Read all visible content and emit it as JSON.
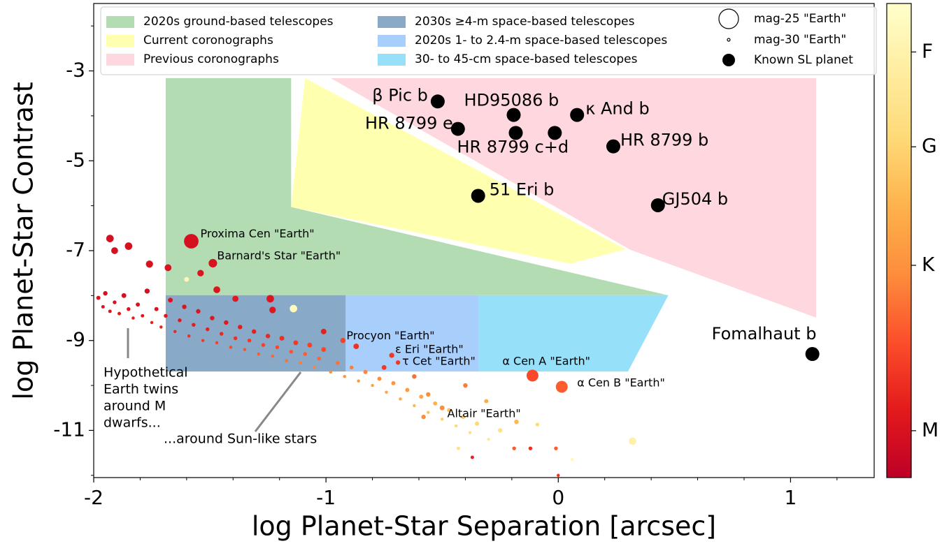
{
  "chart_data": {
    "type": "scatter",
    "xlabel": "log Planet-Star Separation [arcsec]",
    "ylabel": "log Planet-Star Contrast",
    "xlim": [
      -2,
      1.36
    ],
    "ylim": [
      -12.05,
      -1.5
    ],
    "xticks": [
      -2,
      -1,
      0,
      1
    ],
    "xminorticks": [
      -1.8,
      -1.6,
      -1.4,
      -1.2,
      -0.8,
      -0.6,
      -0.4,
      -0.2,
      0.2,
      0.4,
      0.6,
      0.8,
      1.2
    ],
    "yticks": [
      -11,
      -9,
      -7,
      -5,
      -3
    ],
    "yminorticks": [
      -12,
      -10,
      -8,
      -6,
      -4,
      -2
    ],
    "regions": [
      {
        "name": "2020s ground-based telescopes",
        "color": "#b3dcb3",
        "x": [
          -1.69,
          -1.15,
          -1.15,
          0.47,
          -1.69
        ],
        "y": [
          -3.16,
          -3.16,
          -6.03,
          -7.99,
          -7.99
        ]
      },
      {
        "name": "Current coronographs",
        "color": "#ffffb0",
        "x": [
          -1.09,
          0.29,
          0.05,
          -1.15
        ],
        "y": [
          -3.16,
          -6.97,
          -7.29,
          -6.03
        ]
      },
      {
        "name": "Previous coronographs",
        "color": "#ffd7de",
        "x": [
          -0.98,
          1.11,
          1.11,
          0.31
        ],
        "y": [
          -3.16,
          -3.16,
          -8.49,
          -6.98
        ]
      },
      {
        "name": "2030s ≥4-m space-based telescopes",
        "color": "#88a9c8",
        "x": [
          -1.69,
          -0.915,
          -0.915,
          -1.69
        ],
        "y": [
          -7.99,
          -7.99,
          -9.69,
          -9.69
        ]
      },
      {
        "name": "2020s 1- to 2.4-m space-based telescopes",
        "color": "#a8cffc",
        "x": [
          -0.915,
          -0.342,
          -0.342,
          -0.915
        ],
        "y": [
          -7.99,
          -7.99,
          -9.69,
          -9.69
        ]
      },
      {
        "name": "30- to 45-cm space-based telescopes",
        "color": "#96e0fa",
        "x": [
          -0.342,
          0.474,
          0.3,
          -0.342
        ],
        "y": [
          -7.99,
          -7.99,
          -9.69,
          -9.69
        ]
      }
    ],
    "planets": {
      "name": "Known SL planet",
      "color": "#000000",
      "labels": [
        "β Pic b",
        "HD95086 b",
        "κ And b",
        "HR 8799 e",
        "HR 8799 c+d",
        null,
        "HR 8799 b",
        "51 Eri b",
        "GJ504 b",
        "Fomalhaut b"
      ],
      "x": [
        -0.519,
        -0.192,
        0.081,
        -0.432,
        -0.183,
        -0.015,
        0.237,
        -0.345,
        0.429,
        1.094
      ],
      "y": [
        -3.68,
        -3.98,
        -3.98,
        -4.29,
        -4.38,
        -4.38,
        -4.68,
        -5.78,
        -5.99,
        -9.3
      ]
    },
    "earths": {
      "labels": [
        "Proxima Cen \"Earth\"",
        "Barnard's Star \"Earth\"",
        "Procyon \"Earth\"",
        "ε Eri \"Earth\"",
        "τ Cet \"Earth\"",
        "α Cen A \"Earth\"",
        "α Cen B \"Earth\"",
        "Altair \"Earth\""
      ],
      "x": [
        -1.58,
        -1.487,
        -0.927,
        -0.717,
        -0.69,
        -0.111,
        0.015,
        -0.18
      ],
      "y": [
        -6.79,
        -7.28,
        -9.0,
        -9.33,
        -9.49,
        -9.78,
        -10.03,
        -10.81
      ],
      "teff": [
        3000,
        3050,
        3700,
        3600,
        3600,
        3800,
        4000,
        5200
      ],
      "mag": [
        26.5,
        28.3,
        29.3,
        29.3,
        29.5,
        27.3,
        27.3,
        29.5
      ]
    },
    "stars": {
      "x": [
        -1.98,
        -1.96,
        -1.95,
        -1.93,
        -1.91,
        -1.89,
        -1.87,
        -1.85,
        -1.83,
        -1.81,
        -1.79,
        -1.77,
        -1.75,
        -1.73,
        -1.71,
        -1.69,
        -1.67,
        -1.65,
        -1.63,
        -1.61,
        -1.59,
        -1.57,
        -1.55,
        -1.53,
        -1.51,
        -1.49,
        -1.47,
        -1.45,
        -1.43,
        -1.41,
        -1.39,
        -1.37,
        -1.35,
        -1.33,
        -1.31,
        -1.29,
        -1.27,
        -1.25,
        -1.23,
        -1.21,
        -1.19,
        -1.17,
        -1.15,
        -1.13,
        -1.11,
        -1.09,
        -1.07,
        -1.05,
        -1.03,
        -1.01,
        -0.98,
        -0.95,
        -0.92,
        -0.89,
        -0.86,
        -0.83,
        -0.8,
        -0.77,
        -0.74,
        -0.71,
        -0.68,
        -0.65,
        -0.62,
        -0.59,
        -0.56,
        -0.53,
        -0.5,
        -0.47,
        -0.44,
        -0.41,
        -0.38,
        -0.35,
        -0.3,
        -1.93,
        -1.85,
        -1.91,
        -1.76,
        -1.68,
        -1.54,
        -1.47,
        -1.39,
        -1.24,
        -1.23,
        -1.14,
        -1.6,
        -1.01,
        -0.87,
        -0.75,
        -0.62,
        -0.56,
        -0.58,
        -0.5,
        -0.4,
        -0.31,
        -0.25,
        -0.19,
        -0.12,
        -0.01,
        -0.09,
        0.06,
        0.0,
        0.32,
        -0.37,
        -0.43
      ],
      "y": [
        -8.05,
        -8.25,
        -7.95,
        -8.35,
        -8.15,
        -8.4,
        -8.0,
        -8.3,
        -8.5,
        -8.2,
        -8.45,
        -7.9,
        -8.6,
        -8.3,
        -8.7,
        -8.45,
        -8.1,
        -8.8,
        -8.55,
        -8.25,
        -8.9,
        -8.65,
        -8.35,
        -9.0,
        -8.75,
        -8.5,
        -9.05,
        -8.85,
        -8.6,
        -9.15,
        -8.95,
        -8.7,
        -9.2,
        -9.0,
        -8.8,
        -9.3,
        -9.1,
        -8.9,
        -9.35,
        -9.15,
        -8.95,
        -9.45,
        -9.25,
        -9.05,
        -9.5,
        -9.3,
        -9.1,
        -9.6,
        -9.4,
        -9.2,
        -9.7,
        -9.5,
        -9.8,
        -9.6,
        -9.9,
        -9.7,
        -10.0,
        -9.85,
        -10.15,
        -9.95,
        -10.3,
        -10.1,
        -10.45,
        -10.25,
        -10.6,
        -10.4,
        -10.75,
        -10.55,
        -10.9,
        -10.7,
        -11.05,
        -10.85,
        -11.2,
        -6.73,
        -6.9,
        -7.0,
        -7.3,
        -7.38,
        -7.5,
        -7.87,
        -8.07,
        -8.07,
        -8.32,
        -8.29,
        -7.64,
        -8.8,
        -9.13,
        -9.6,
        -9.8,
        -10.2,
        -10.7,
        -10.5,
        -10.0,
        -10.35,
        -11.0,
        -11.4,
        -11.4,
        -11.4,
        -10.87,
        -11.65,
        -12.0,
        -11.24,
        -11.6,
        -11.4
      ],
      "teff": [
        3050,
        3100,
        3000,
        3150,
        3050,
        3200,
        3000,
        3100,
        3250,
        3050,
        3150,
        3000,
        3300,
        3100,
        3350,
        3150,
        3050,
        3400,
        3200,
        3100,
        3500,
        3250,
        3100,
        3600,
        3300,
        3150,
        3700,
        3400,
        3200,
        3800,
        3500,
        3250,
        3900,
        3600,
        3300,
        4000,
        3700,
        3400,
        4100,
        3800,
        3500,
        4200,
        3900,
        3600,
        4300,
        4000,
        3700,
        4400,
        4100,
        3800,
        4500,
        4200,
        4600,
        4300,
        4700,
        4400,
        4800,
        4500,
        4900,
        4600,
        5000,
        4700,
        5200,
        4900,
        5400,
        5100,
        5600,
        5300,
        5800,
        5500,
        6000,
        5700,
        6200,
        3000,
        3000,
        3000,
        3050,
        3050,
        3100,
        3100,
        3200,
        3100,
        3150,
        6800,
        6700,
        3300,
        3500,
        3600,
        4200,
        4500,
        4500,
        4500,
        4300,
        5000,
        6000,
        4000,
        3500,
        4000,
        5800,
        6800,
        3500,
        6500,
        3300,
        6000
      ],
      "mag": [
        29.6,
        29.8,
        29.5,
        29.8,
        29.7,
        29.8,
        29.4,
        29.7,
        29.9,
        29.6,
        29.8,
        29.3,
        29.9,
        29.6,
        29.9,
        29.7,
        29.4,
        29.9,
        29.7,
        29.5,
        29.9,
        29.7,
        29.5,
        29.9,
        29.7,
        29.5,
        29.9,
        29.7,
        29.5,
        29.9,
        29.7,
        29.5,
        29.9,
        29.7,
        29.5,
        29.9,
        29.7,
        29.5,
        29.9,
        29.7,
        29.4,
        29.9,
        29.7,
        29.4,
        29.9,
        29.7,
        29.4,
        29.9,
        29.7,
        29.4,
        29.9,
        29.7,
        29.9,
        29.7,
        29.9,
        29.6,
        29.9,
        29.6,
        29.9,
        29.6,
        29.9,
        29.6,
        29.9,
        29.6,
        29.9,
        29.6,
        29.9,
        29.6,
        29.9,
        29.6,
        29.9,
        29.6,
        29.9,
        28.6,
        28.6,
        28.8,
        28.7,
        28.8,
        28.9,
        28.8,
        29.0,
        28.6,
        28.9,
        28.6,
        29.4,
        29.2,
        29.2,
        29.4,
        29.5,
        29.5,
        29.5,
        29.4,
        29.5,
        29.6,
        29.5,
        29.7,
        29.7,
        29.7,
        29.7,
        29.8,
        29.9,
        28.6,
        29.8,
        29.8
      ]
    },
    "size_legend": [
      {
        "label": "mag-25 \"Earth\"",
        "mag": 25
      },
      {
        "label": "mag-30 \"Earth\"",
        "mag": 30
      }
    ],
    "colorbar": {
      "colormap": "YlOrRd_r",
      "lim": [
        2600,
        7000
      ],
      "ticks": [
        {
          "value": 6550,
          "label": "F"
        },
        {
          "value": 5670,
          "label": "G"
        },
        {
          "value": 4570,
          "label": "K"
        },
        {
          "value": 3035,
          "label": "M"
        }
      ]
    },
    "annotations": [
      {
        "lines": [
          "Hypothetical",
          "Earth twins",
          "around M",
          "dwarfs..."
        ]
      },
      {
        "lines": [
          "...around Sun-like stars"
        ]
      }
    ]
  }
}
